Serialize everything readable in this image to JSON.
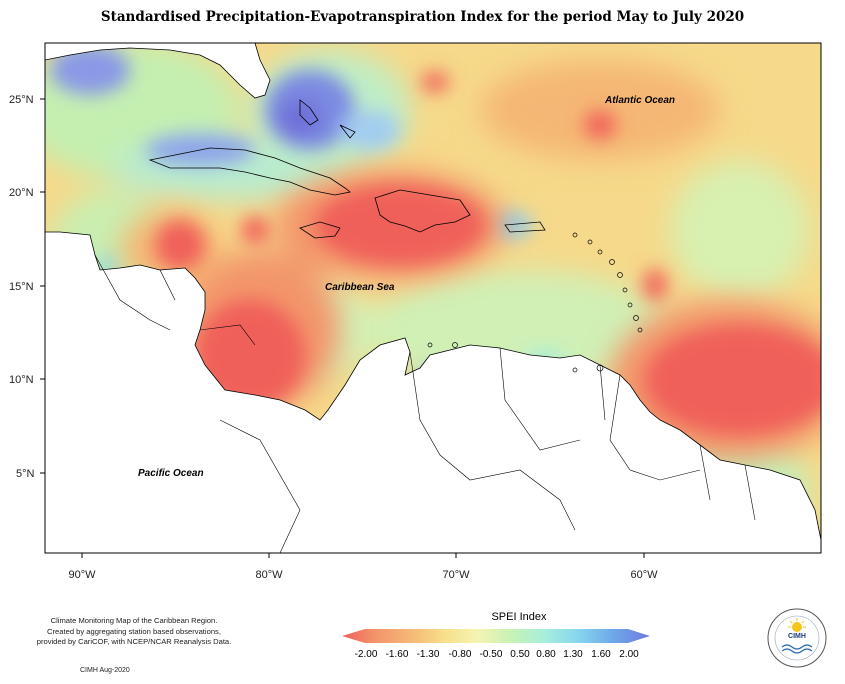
{
  "title": "Standardised Precipitation-Evapotranspiration Index for the period May to July 2020",
  "map": {
    "lat_ticks": [
      "25°N",
      "20°N",
      "15°N",
      "10°N",
      "5°N"
    ],
    "lon_ticks": [
      "90°W",
      "80°W",
      "70°W",
      "60°W"
    ],
    "labels": {
      "atlantic": "Atlantic Ocean",
      "caribbean": "Caribbean Sea",
      "pacific": "Pacific Ocean"
    }
  },
  "legend": {
    "title": "SPEI Index",
    "ticks": [
      "-2.00",
      "-1.60",
      "-1.30",
      "-0.80",
      "-0.50",
      "0.50",
      "0.80",
      "1.30",
      "1.60",
      "2.00"
    ],
    "colors": [
      "#f0605a",
      "#f3956b",
      "#f5b775",
      "#f7df8a",
      "#f5f4b3",
      "#c8f2b6",
      "#a6eedc",
      "#86d5ef",
      "#6ea8e9",
      "#6f7ae0"
    ]
  },
  "footer": {
    "credit_lines": [
      "Climate Monitoring Map of the Caribbean Region.",
      "Created by aggregating station based observations,",
      "provided by CariCOF, with NCEP/NCAR Reanalysis Data."
    ],
    "date": "CIMH Aug-2020",
    "logo_text": "CIMH"
  }
}
